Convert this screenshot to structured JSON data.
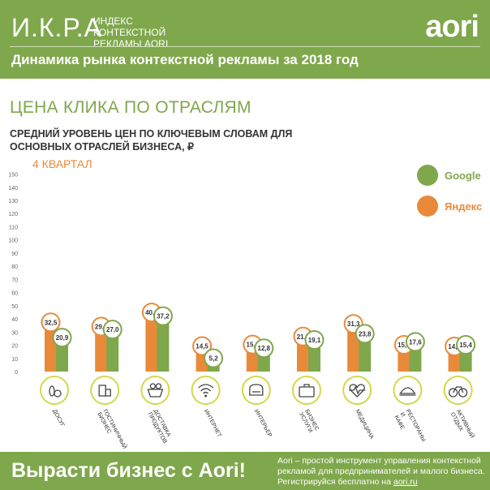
{
  "header": {
    "brand": "И.К.Р.А",
    "brand_sub": "ИНДЕКС КОНТЕКСТНОЙ РЕКЛАМЫ AORI",
    "logo": "aori",
    "headline": "Динамика рынка контекстной рекламы за 2018 год"
  },
  "section_title": "ЦЕНА КЛИКА ПО ОТРАСЛЯМ",
  "subtitle": "СРЕДНИЙ УРОВЕНЬ ЦЕН ПО КЛЮЧЕВЫМ СЛОВАМ ДЛЯ ОСНОВНЫХ ОТРАСЛЕЙ БИЗНЕСА, ₽",
  "quarter_label": "4 КВАРТАЛ",
  "colors": {
    "google": "#7fa74c",
    "yandex": "#e88a3a",
    "brand_green": "#7fa74c",
    "icon_ring": "#d4d84a"
  },
  "chart_data": {
    "type": "bar",
    "ylim": [
      0,
      150
    ],
    "yticks": [
      0,
      10,
      20,
      30,
      40,
      50,
      60,
      70,
      80,
      90,
      100,
      110,
      120,
      130,
      140,
      150
    ],
    "legend_position": "top-right",
    "categories": [
      "ДОСУГ",
      "ГОСТИНИЧНЫЙ БИЗНЕС",
      "ДОСТАВКА ПРОДУКТОВ",
      "ИНТЕРНЕТ",
      "ИНТЕРЬЕР",
      "БИЗНЕС УСЛУГИ",
      "МЕДИЦИНА",
      "РЕСТОРАНЫ И КАФЕ",
      "АКТИВНЫЙ ОТДЫХ"
    ],
    "category_icons": [
      "bowling-icon",
      "hotel-icon",
      "grocery-basket-icon",
      "wifi-icon",
      "armchair-icon",
      "briefcase-icon",
      "heartbeat-icon",
      "food-dish-icon",
      "bicycle-icon"
    ],
    "series": [
      {
        "name": "Яндекс",
        "values": [
          32.5,
          29.3,
          40.0,
          14.5,
          15.6,
          21.7,
          31.3,
          15.4,
          14.2
        ],
        "labels": [
          "32,5",
          "29,3",
          "40,0",
          "14,5",
          "15,6",
          "21,7",
          "31,3",
          "15,4",
          "14,2"
        ]
      },
      {
        "name": "Google",
        "values": [
          20.9,
          27.0,
          37.2,
          5.2,
          12.8,
          19.1,
          23.8,
          17.6,
          15.4
        ],
        "labels": [
          "20,9",
          "27,0",
          "37,2",
          "5,2",
          "12,8",
          "19,1",
          "23,8",
          "17,6",
          "15,4"
        ]
      }
    ]
  },
  "footer": {
    "slogan": "Вырасти бизнес с Aori!",
    "text": "Aori – простой инструмент управления контекстной рекламой для предпринимателей и малого бизнеса. Регистрируйся бесплатно на ",
    "link": "aori.ru"
  }
}
